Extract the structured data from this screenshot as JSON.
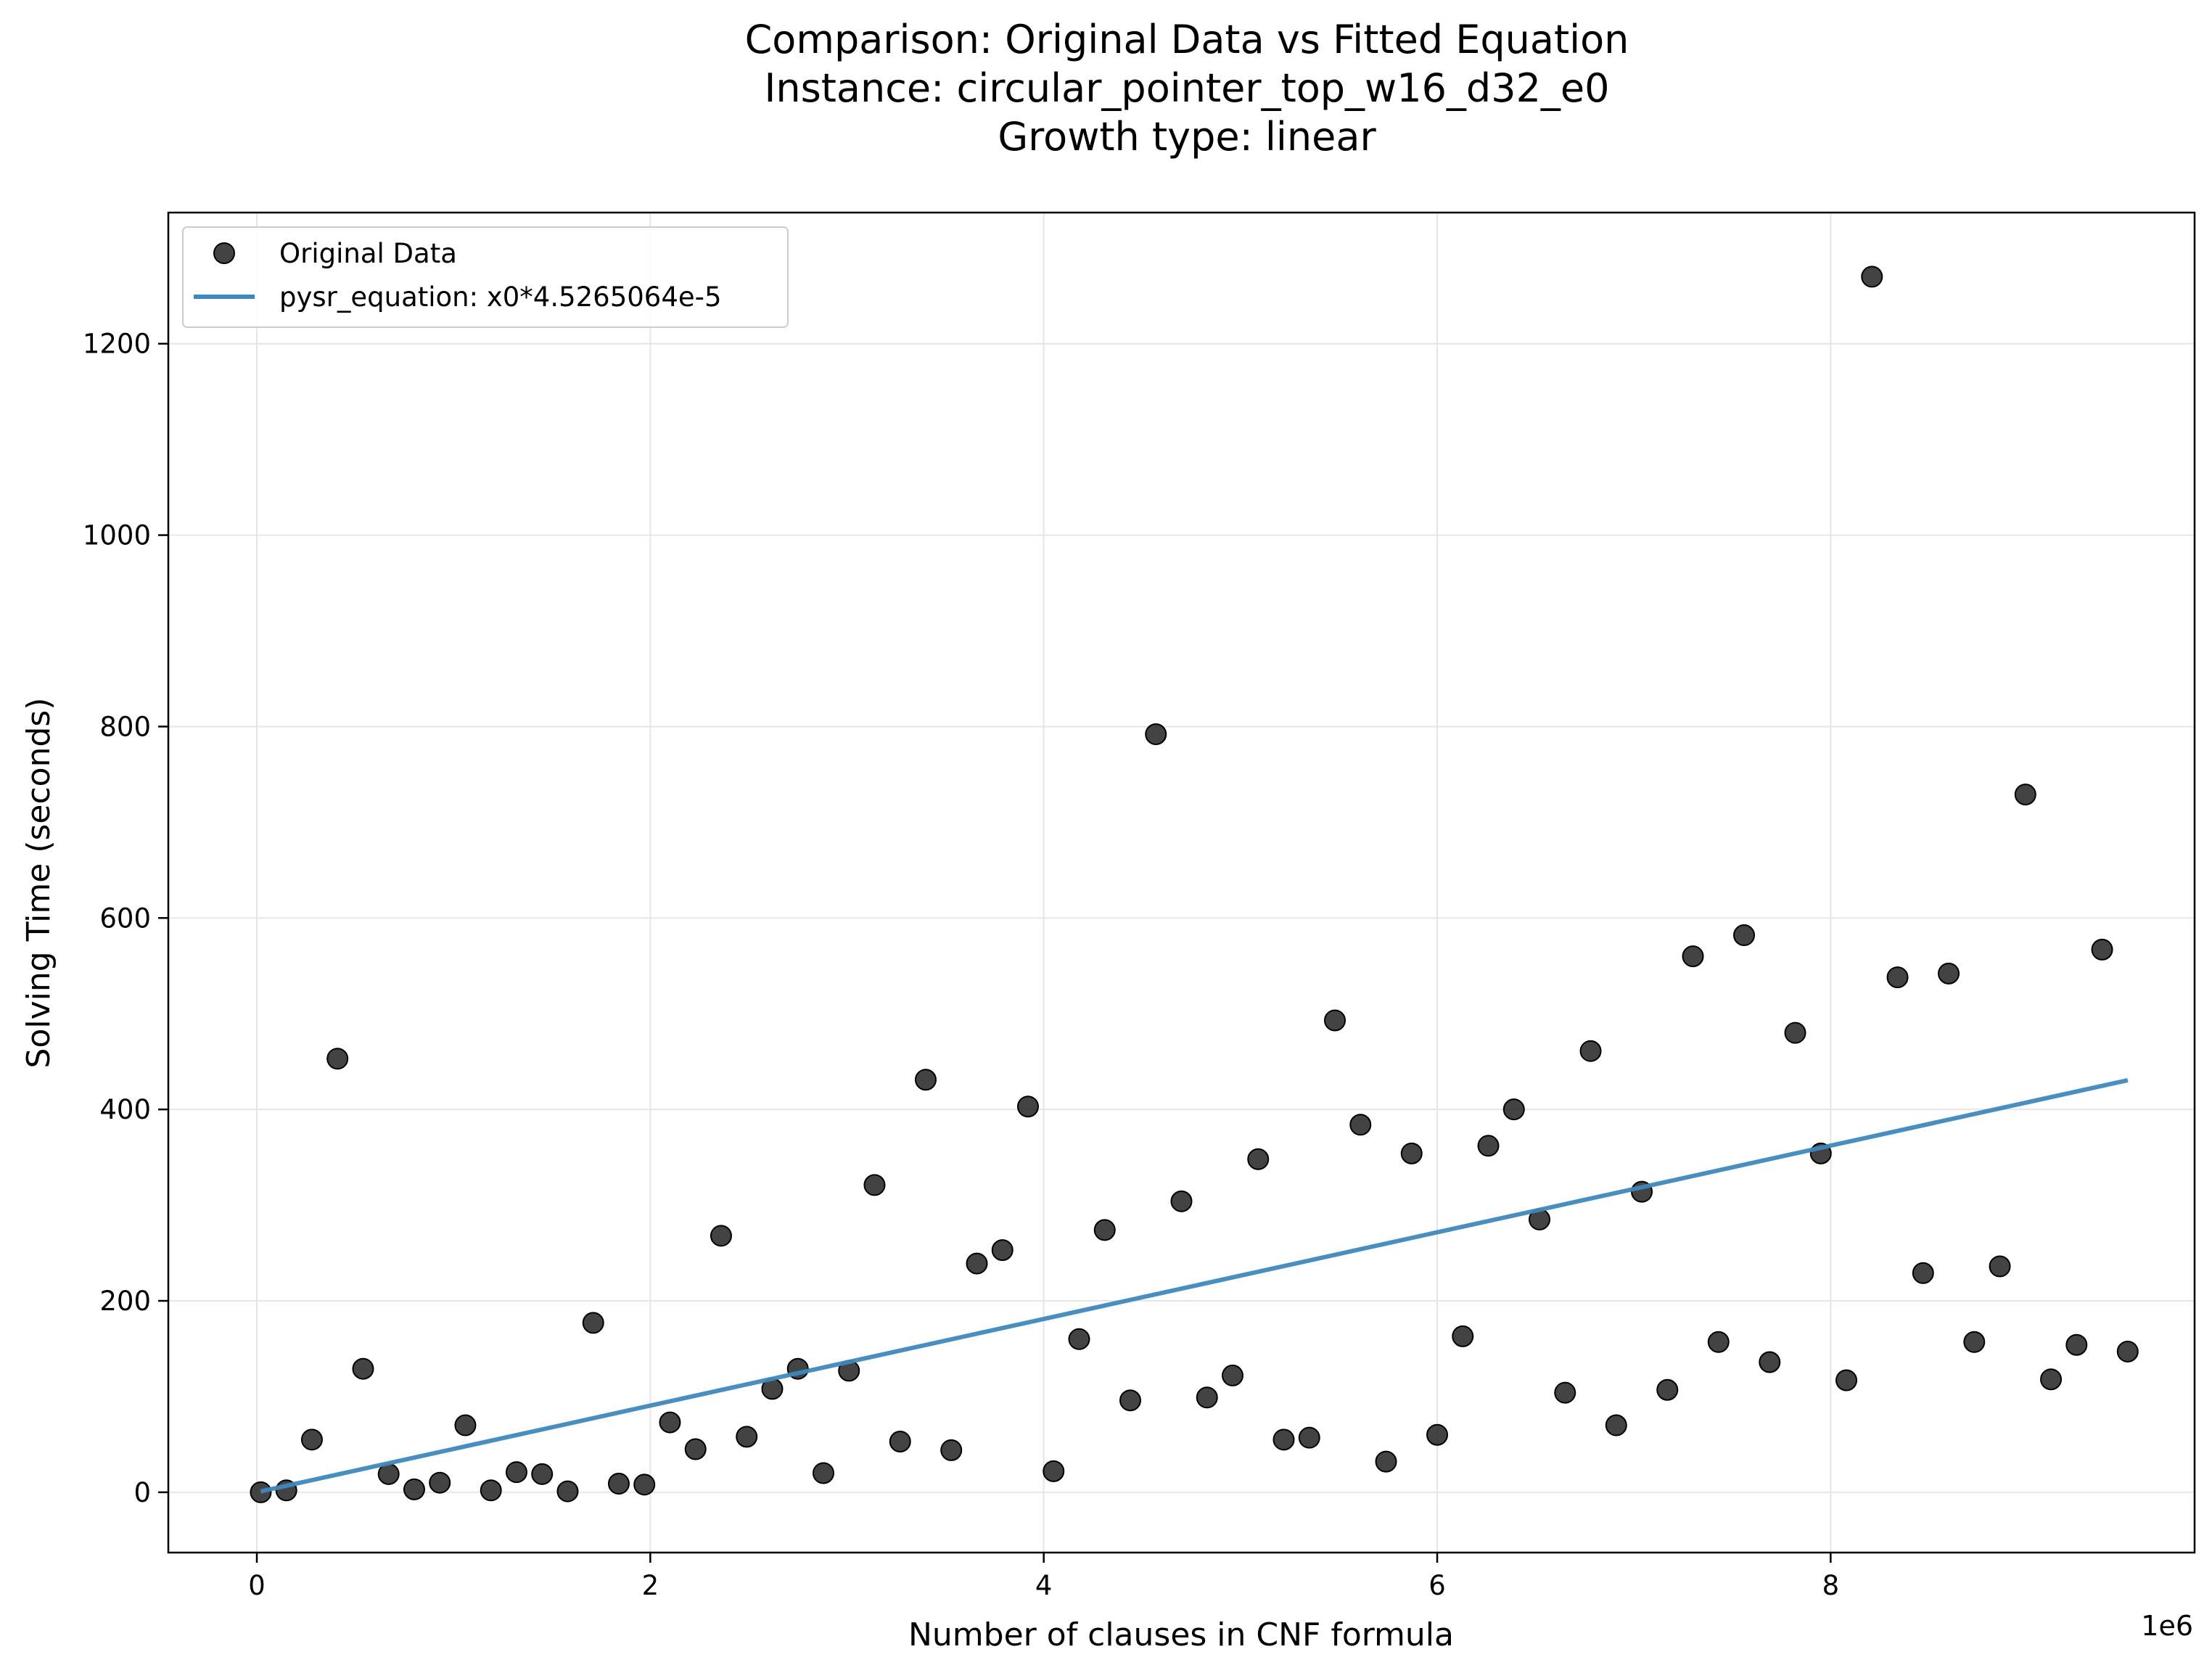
{
  "chart_data": {
    "type": "scatter",
    "title": [
      "Comparison: Original Data vs Fitted Equation",
      "Instance: circular_pointer_top_w16_d32_e0",
      "Growth type: linear"
    ],
    "xlabel": "Number of clauses in CNF formula",
    "ylabel": "Solving Time (seconds)",
    "x_offset_label": "1e6",
    "xlim": [
      -0.45,
      9.85
    ],
    "ylim": [
      -63,
      1337
    ],
    "x_ticks": [
      0,
      2,
      4,
      6,
      8
    ],
    "x_tick_labels": [
      "0",
      "2",
      "4",
      "6",
      "8"
    ],
    "y_ticks": [
      0,
      200,
      400,
      600,
      800,
      1000,
      1200
    ],
    "y_tick_labels": [
      "0",
      "200",
      "400",
      "600",
      "800",
      "1000",
      "1200"
    ],
    "grid": true,
    "legend_position": "top-left",
    "colors": {
      "scatter": "#222222",
      "line": "#3f88bd"
    },
    "series": [
      {
        "name": "Original Data",
        "kind": "scatter",
        "x": [
          0.02,
          0.15,
          0.28,
          0.41,
          0.54,
          0.67,
          0.8,
          0.93,
          1.06,
          1.19,
          1.32,
          1.45,
          1.58,
          1.71,
          1.84,
          1.97,
          2.1,
          2.23,
          2.36,
          2.49,
          2.62,
          2.75,
          2.88,
          3.01,
          3.14,
          3.27,
          3.4,
          3.53,
          3.66,
          3.79,
          3.92,
          4.05,
          4.18,
          4.31,
          4.44,
          4.57,
          4.7,
          4.83,
          4.96,
          5.09,
          5.22,
          5.35,
          5.48,
          5.61,
          5.74,
          5.87,
          6.0,
          6.13,
          6.26,
          6.39,
          6.52,
          6.65,
          6.78,
          6.91,
          7.04,
          7.17,
          7.3,
          7.43,
          7.56,
          7.69,
          7.82,
          7.95,
          8.08,
          8.21,
          8.34,
          8.47,
          8.6,
          8.73,
          8.86,
          8.99,
          9.12,
          9.25,
          9.38,
          9.51
        ],
        "y": [
          0,
          2,
          55,
          453,
          129,
          19,
          3,
          10,
          70,
          2,
          21,
          19,
          1,
          177,
          9,
          8,
          73,
          45,
          268,
          58,
          108,
          129,
          20,
          127,
          321,
          53,
          431,
          44,
          239,
          253,
          403,
          22,
          160,
          274,
          96,
          792,
          304,
          99,
          122,
          348,
          55,
          57,
          493,
          384,
          32,
          354,
          60,
          163,
          362,
          400,
          285,
          104,
          461,
          70,
          314,
          107,
          560,
          157,
          582,
          136,
          480,
          354,
          117,
          1270,
          538,
          229,
          542,
          157,
          236,
          729,
          118,
          154,
          567,
          147
        ]
      },
      {
        "name": "pysr_equation: x0*4.5265064e-5",
        "kind": "line",
        "x": [
          0.02,
          9.51
        ],
        "y": [
          0.9,
          430.5
        ]
      }
    ]
  }
}
